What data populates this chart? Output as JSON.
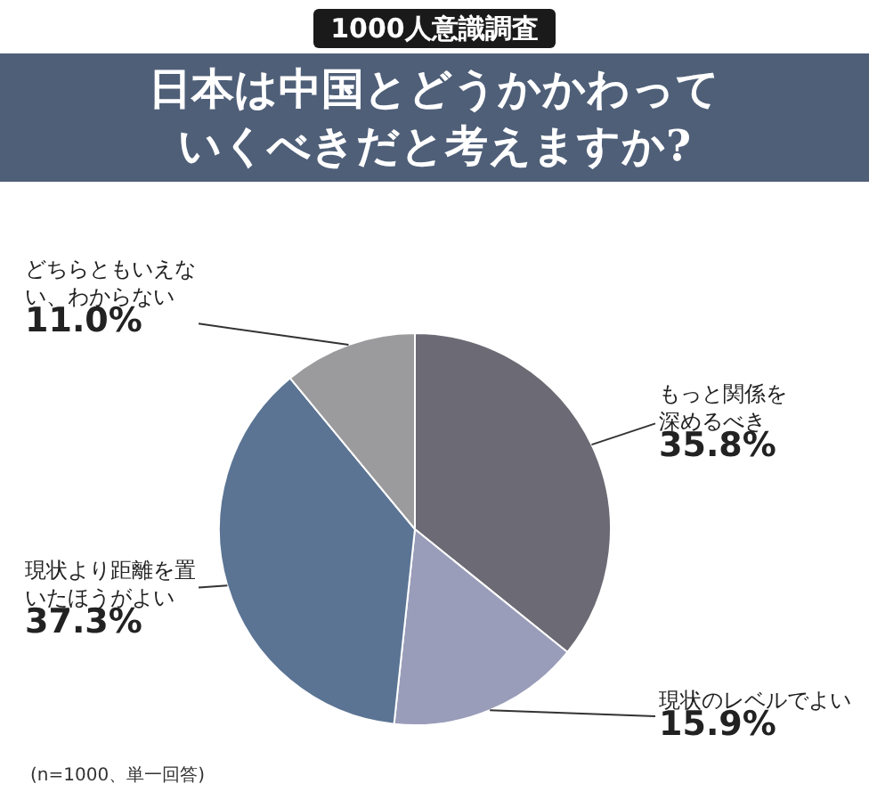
{
  "chart_data": {
    "type": "pie",
    "title": "日本は中国とどうかかわっていくべきだと考えますか?",
    "subtitle": "1000人意識調査",
    "categories": [
      "もっと関係を深めるべき",
      "現状のレベルでよい",
      "現状より距離を置いたほうがよい",
      "どちらともいえない、わからない"
    ],
    "values": [
      35.8,
      15.9,
      37.3,
      11.0
    ],
    "colors": [
      "#6c6a74",
      "#9a9db9",
      "#5b7494",
      "#9b9b9d"
    ],
    "value_labels": [
      "35.8%",
      "15.9%",
      "37.3%",
      "11.0%"
    ],
    "annotations": [
      "(n=1000、単一回答)"
    ],
    "legend": false
  }
}
